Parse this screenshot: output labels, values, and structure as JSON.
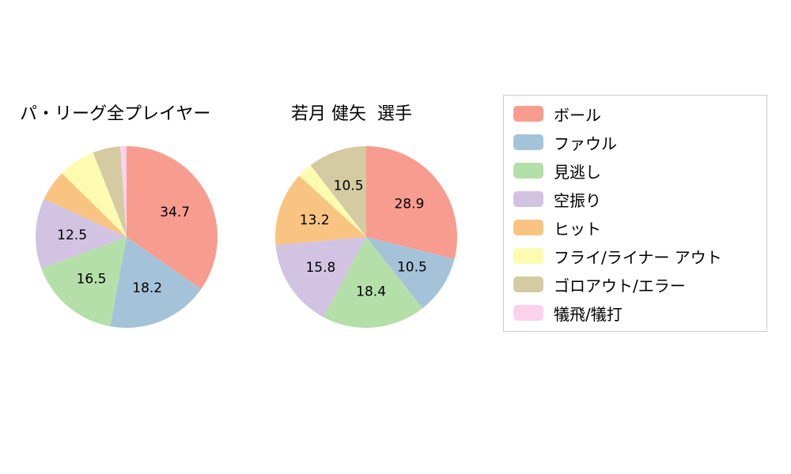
{
  "page": {
    "background": "#ffffff"
  },
  "legend": {
    "position": "right",
    "border_color": "#cccccc",
    "items": [
      {
        "label": "ボール",
        "color": "#F89C8F"
      },
      {
        "label": "ファウル",
        "color": "#A5C3D8"
      },
      {
        "label": "見逃し",
        "color": "#B5DFA9"
      },
      {
        "label": "空振り",
        "color": "#D2C3E2"
      },
      {
        "label": "ヒット",
        "color": "#F9C482"
      },
      {
        "label": "フライ/ライナー アウト",
        "color": "#FCFBB0"
      },
      {
        "label": "ゴロアウト/エラー",
        "color": "#D4CBA3"
      },
      {
        "label": "犠飛/犠打",
        "color": "#FAD3EB"
      }
    ]
  },
  "chart_data": [
    {
      "type": "pie",
      "title": "パ・リーグ全プレイヤー",
      "start_angle": "top",
      "direction": "clockwise",
      "categories": [
        "ボール",
        "ファウル",
        "見逃し",
        "空振り",
        "ヒット",
        "フライ/ライナー アウト",
        "ゴロアウト/エラー",
        "犠飛/犠打"
      ],
      "values": [
        34.7,
        18.2,
        16.5,
        12.5,
        5.5,
        6.6,
        4.9,
        1.1
      ],
      "data_labels": [
        "34.7",
        "18.2",
        "16.5",
        "12.5",
        "",
        "",
        "",
        ""
      ]
    },
    {
      "type": "pie",
      "title": "若月 健矢  選手",
      "start_angle": "top",
      "direction": "clockwise",
      "categories": [
        "ボール",
        "ファウル",
        "見逃し",
        "空振り",
        "ヒット",
        "フライ/ライナー アウト",
        "ゴロアウト/エラー",
        "犠飛/犠打"
      ],
      "values": [
        28.9,
        10.5,
        18.4,
        15.8,
        13.2,
        2.7,
        10.5,
        0
      ],
      "data_labels": [
        "28.9",
        "10.5",
        "18.4",
        "15.8",
        "13.2",
        "",
        "10.5",
        ""
      ]
    }
  ]
}
